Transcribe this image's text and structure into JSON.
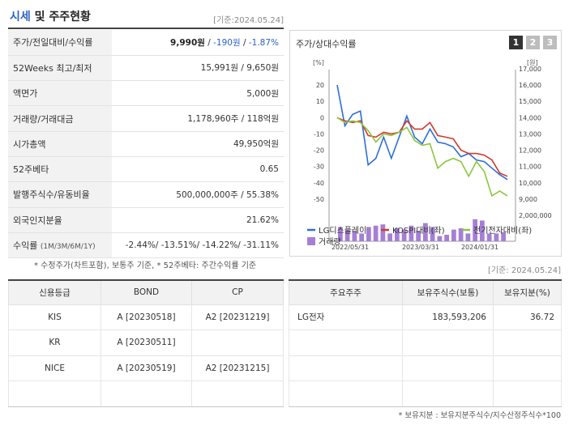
{
  "header": {
    "title_highlight": "시세",
    "title_rest": " 및 주주현황",
    "date": "[기준:2024.05.24]"
  },
  "price_info": {
    "rows": [
      {
        "label": "주가/전일대비/수익률",
        "price": "9,990원",
        "sep1": " / ",
        "change": "-190원",
        "sep2": " / ",
        "rate": "-1.87%"
      },
      {
        "label": "52Weeks 최고/최저",
        "value": "15,991원 / 9,650원"
      },
      {
        "label": "액면가",
        "value": "5,000원"
      },
      {
        "label": "거래량/거래대금",
        "value": "1,178,960주 / 118억원"
      },
      {
        "label": "시가총액",
        "value": "49,950억원"
      },
      {
        "label": "52주베타",
        "value": "0.65"
      },
      {
        "label": "발행주식수/유동비율",
        "value": "500,000,000주 / 55.38%"
      },
      {
        "label": "외국인지분율",
        "value": "21.62%"
      },
      {
        "label": "수익률",
        "label_sub": "(1M/3M/6M/1Y)",
        "value": "-2.44%/ -13.51%/ -14.22%/ -31.11%"
      }
    ],
    "note": "* 수정주가(차트포함), 보통주 기준, * 52주베타: 주간수익률 기준"
  },
  "chart": {
    "title": "주가/상대수익률",
    "pages": [
      "1",
      "2",
      "3"
    ],
    "colors": {
      "lg": "#2b6fd6",
      "kospi": "#d33a2c",
      "elec": "#8cc63f",
      "volume": "#a57fd6"
    }
  },
  "chart_data": {
    "type": "line",
    "left_axis_unit": "[%]",
    "right_axis_unit": "[원]",
    "y_left_ticks": [
      20,
      10,
      0,
      -10,
      -20,
      -30,
      -40,
      -50
    ],
    "y_left_range": [
      -55,
      22
    ],
    "y_right_ticks": [
      "17,000",
      "16,000",
      "15,000",
      "14,000",
      "13,000",
      "12,000",
      "11,000",
      "10,000",
      "9,000"
    ],
    "x_ticks": [
      "2022/05/31",
      "2023/03/31",
      "2024/01/31"
    ],
    "volume_tick": "2,000,000",
    "series": [
      {
        "name": "LG디스플레이",
        "values": [
          20,
          -5,
          2,
          4,
          -29,
          -25,
          -12,
          -25,
          -12,
          1,
          -12,
          -16,
          -7,
          -15,
          -16,
          -18,
          -24,
          -22,
          -26,
          -27,
          -31,
          -35,
          -38
        ]
      },
      {
        "name": "KOSPI대비(좌)",
        "values": [
          0,
          -2,
          -3,
          -2,
          -11,
          -12,
          -9,
          -10,
          -9,
          -2,
          -7,
          -7,
          -3,
          -11,
          -12,
          -13,
          -20,
          -22,
          -22,
          -23,
          -26,
          -34,
          -36
        ]
      },
      {
        "name": "전기전자대비(좌)",
        "values": [
          0,
          -3,
          -2,
          -3,
          -8,
          -15,
          -10,
          -11,
          -9,
          -6,
          -14,
          -17,
          -16,
          -31,
          -27,
          -25,
          -27,
          -36,
          -27,
          -33,
          -48,
          -45,
          -48
        ]
      }
    ],
    "volume_series": {
      "name": "거래량",
      "values": [
        1.1,
        0.9,
        0.8,
        0.6,
        1.1,
        1.2,
        1.3,
        0.6,
        1.0,
        0.9,
        1.2,
        0.8,
        1.4,
        1.1,
        0.4,
        0.5,
        0.9,
        1.0,
        0.6,
        1.7,
        1.6,
        0.6,
        0.6,
        0.7
      ]
    }
  },
  "credit": {
    "headers": [
      "신용등급",
      "BOND",
      "CP"
    ],
    "rows": [
      [
        "KIS",
        "A  [20230518]",
        "A2  [20231219]"
      ],
      [
        "KR",
        "A  [20230511]",
        ""
      ],
      [
        "NICE",
        "A  [20230519]",
        "A2  [20231215]"
      ],
      [
        "",
        "",
        ""
      ]
    ]
  },
  "holders": {
    "date": "[기준: 2024.05.24]",
    "headers": [
      "주요주주",
      "보유주식수(보통)",
      "보유지분(%)"
    ],
    "rows": [
      [
        "LG전자",
        "183,593,206",
        "36.72"
      ],
      [
        "",
        "",
        ""
      ],
      [
        "",
        "",
        ""
      ],
      [
        "",
        "",
        ""
      ]
    ],
    "note": "* 보유지분 : 보유지분주식수/지수산정주식수*100"
  }
}
